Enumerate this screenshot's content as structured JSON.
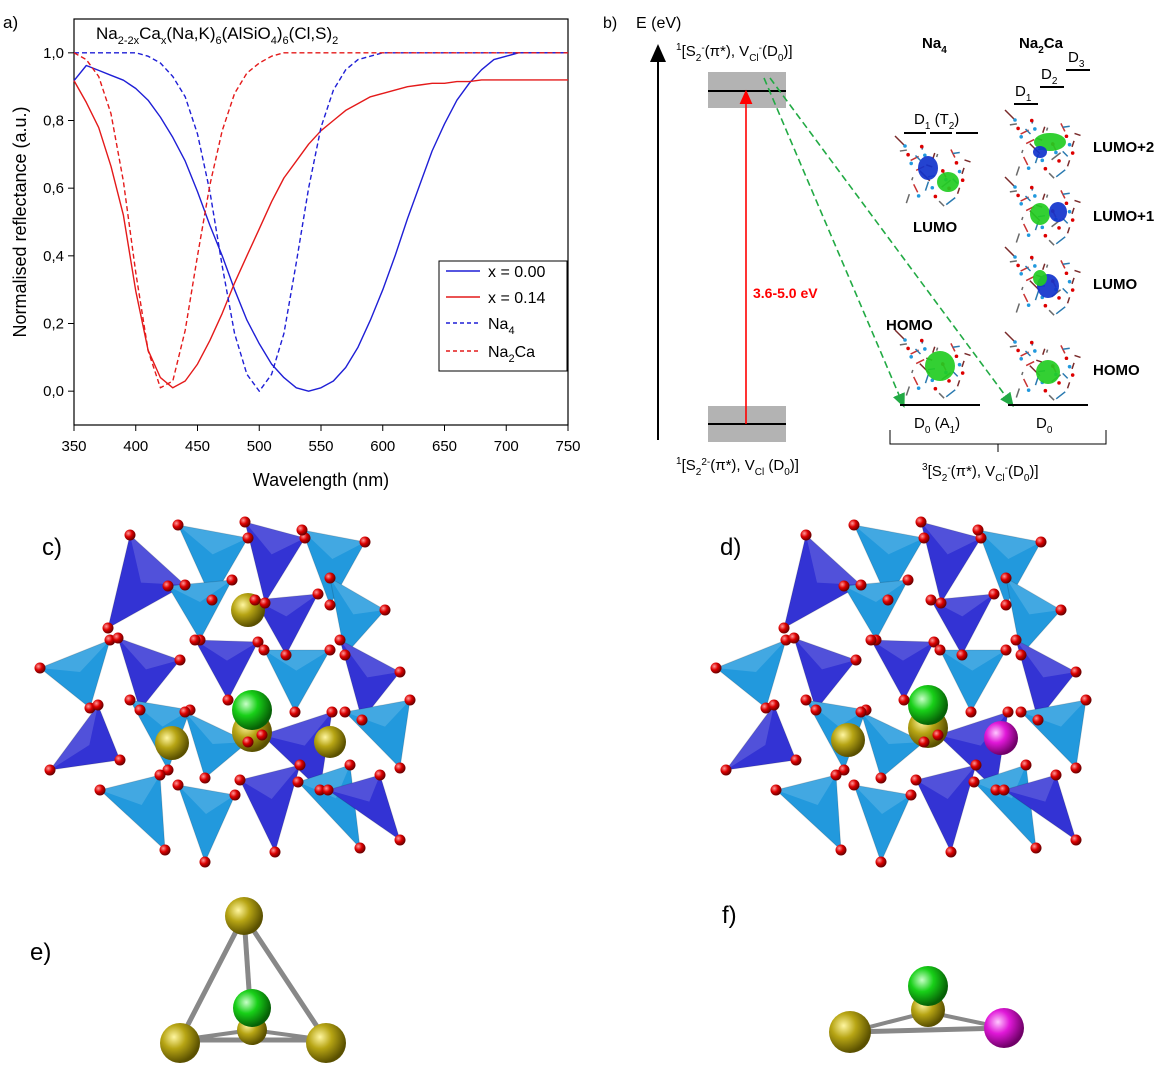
{
  "panel_labels": {
    "a": "a)",
    "b": "b)",
    "c": "c)",
    "d": "d)",
    "e": "e)",
    "f": "f)"
  },
  "chart_data": {
    "type": "line",
    "title": "Na2-2xCax(Na,K)6(AlSiO4)6(Cl,S)2",
    "xlabel": "Wavelength (nm)",
    "ylabel": "Normalised reflectance (a.u.)",
    "xlim": [
      350,
      750
    ],
    "ylim": [
      -0.1,
      1.1
    ],
    "xticks": [
      350,
      400,
      450,
      500,
      550,
      600,
      650,
      700,
      750
    ],
    "yticks": [
      0.0,
      0.2,
      0.4,
      0.6,
      0.8,
      1.0
    ],
    "ytick_labels": [
      "0,0",
      "0,2",
      "0,4",
      "0,6",
      "0,8",
      "1,0"
    ],
    "legend_position": "right",
    "series": [
      {
        "name": "x = 0.00",
        "color": "#1f1fd6",
        "style": "solid",
        "x": [
          350,
          360,
          370,
          380,
          390,
          400,
          410,
          420,
          430,
          440,
          450,
          460,
          470,
          480,
          490,
          500,
          510,
          520,
          530,
          540,
          550,
          560,
          570,
          580,
          590,
          600,
          610,
          620,
          630,
          640,
          650,
          660,
          670,
          680,
          690,
          700,
          710,
          720,
          730,
          740,
          750
        ],
        "y": [
          0.94,
          0.94,
          0.93,
          0.92,
          0.91,
          0.89,
          0.86,
          0.81,
          0.75,
          0.68,
          0.59,
          0.49,
          0.4,
          0.3,
          0.21,
          0.14,
          0.08,
          0.04,
          0.01,
          0.0,
          0.01,
          0.03,
          0.07,
          0.13,
          0.21,
          0.3,
          0.4,
          0.51,
          0.61,
          0.71,
          0.79,
          0.86,
          0.91,
          0.95,
          0.98,
          0.99,
          1.0,
          1.0,
          1.0,
          1.0,
          1.0
        ]
      },
      {
        "name": "x = 0.14",
        "color": "#e41a1a",
        "style": "solid",
        "x": [
          350,
          360,
          370,
          380,
          390,
          400,
          410,
          420,
          430,
          440,
          450,
          460,
          470,
          480,
          490,
          500,
          510,
          520,
          530,
          540,
          550,
          560,
          570,
          580,
          590,
          600,
          610,
          620,
          630,
          640,
          650,
          660,
          670,
          680,
          690,
          700,
          710,
          720,
          730,
          740,
          750
        ],
        "y": [
          0.9,
          0.84,
          0.77,
          0.66,
          0.52,
          0.3,
          0.13,
          0.04,
          0.01,
          0.03,
          0.08,
          0.15,
          0.23,
          0.32,
          0.4,
          0.48,
          0.56,
          0.63,
          0.68,
          0.73,
          0.77,
          0.8,
          0.83,
          0.85,
          0.87,
          0.88,
          0.89,
          0.9,
          0.905,
          0.91,
          0.91,
          0.915,
          0.915,
          0.92,
          0.92,
          0.92,
          0.92,
          0.92,
          0.92,
          0.92,
          0.92
        ]
      },
      {
        "name": "Na4",
        "color": "#1f1fd6",
        "style": "dashed",
        "x": [
          350,
          370,
          390,
          400,
          410,
          420,
          430,
          440,
          450,
          460,
          470,
          480,
          490,
          500,
          510,
          520,
          530,
          540,
          550,
          560,
          570,
          580,
          590,
          600,
          620,
          650,
          700,
          750
        ],
        "y": [
          1.0,
          1.0,
          1.0,
          1.0,
          0.99,
          0.97,
          0.93,
          0.87,
          0.76,
          0.59,
          0.37,
          0.17,
          0.05,
          0.0,
          0.05,
          0.17,
          0.38,
          0.6,
          0.78,
          0.89,
          0.95,
          0.98,
          0.99,
          1.0,
          1.0,
          1.0,
          1.0,
          1.0
        ]
      },
      {
        "name": "Na2Ca",
        "color": "#e41a1a",
        "style": "dashed",
        "x": [
          350,
          360,
          370,
          380,
          390,
          400,
          410,
          420,
          430,
          440,
          450,
          460,
          470,
          480,
          490,
          500,
          510,
          520,
          530,
          540,
          550,
          560,
          580,
          600,
          650,
          700,
          750
        ],
        "y": [
          1.0,
          0.98,
          0.93,
          0.82,
          0.62,
          0.35,
          0.12,
          0.01,
          0.03,
          0.18,
          0.4,
          0.61,
          0.77,
          0.88,
          0.94,
          0.97,
          0.99,
          1.0,
          1.0,
          1.0,
          1.0,
          1.0,
          1.0,
          1.0,
          1.0,
          1.0,
          1.0
        ]
      }
    ]
  },
  "diagram_b": {
    "y_axis_label": "E (eV)",
    "top_state_label": "1[S2-(π*), VCl-(D0)]",
    "bottom_state_label": "1[S22-(π*), VCl (D0)]",
    "right_state_label": "3[S2-(π*), VCl-(D0)]",
    "transition_label": "3.6-5.0 eV",
    "col1_header": "Na4",
    "col2_header": "Na2Ca",
    "col1_upper_level": "D1 (T2)",
    "col1_ground_level": "D0 (A1)",
    "col2_ground_level": "D0",
    "col2_levels": [
      "D1",
      "D2",
      "D3"
    ],
    "orbitals_col1": [
      "LUMO",
      "HOMO"
    ],
    "orbitals_col2": [
      "LUMO+2",
      "LUMO+1",
      "LUMO",
      "HOMO"
    ],
    "colors": {
      "transition": "#ff0000",
      "relaxation": "#22aa44",
      "band": "#b3b3b3"
    }
  },
  "structure_colors": {
    "tetra_dark": "#3333d4",
    "tetra_light": "#2299dd",
    "oxygen": "#dd0000",
    "sulfur": "#b0a010",
    "chlorine": "#11cc11",
    "calcium": "#dd11cc",
    "bond": "#777777"
  }
}
